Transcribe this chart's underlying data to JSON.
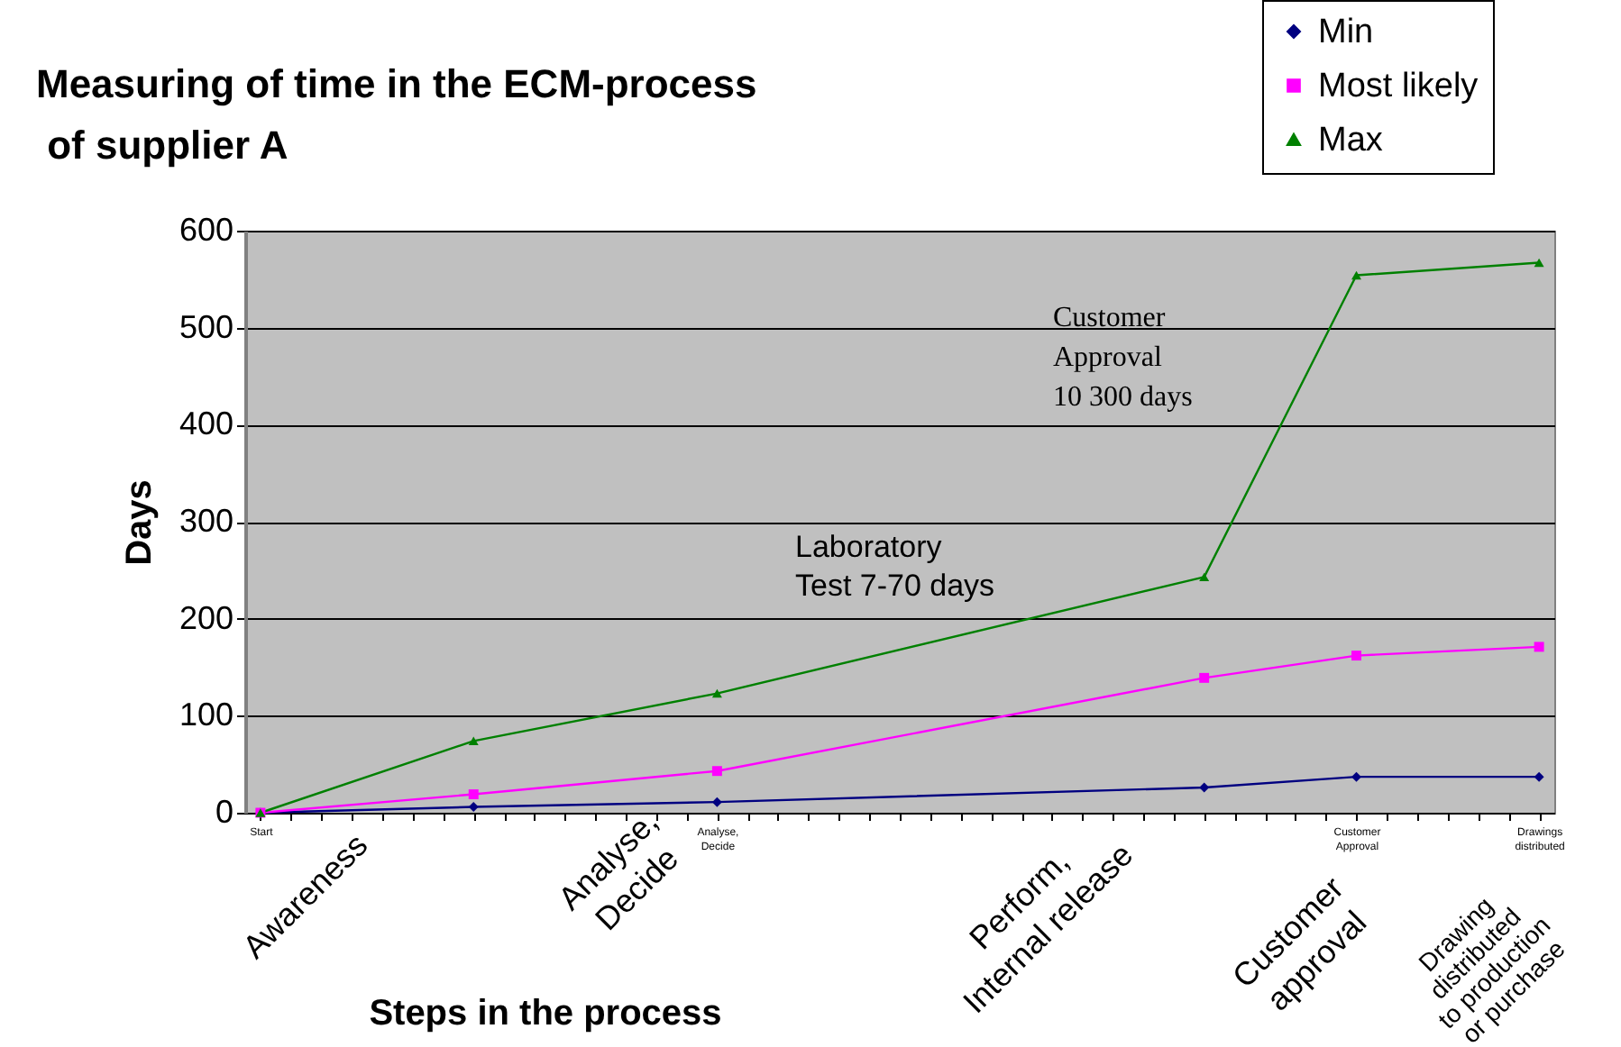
{
  "chart_data": {
    "type": "line",
    "title": [
      "Measuring of time in the ECM-process",
      " of supplier A"
    ],
    "xlabel": "Steps in the process",
    "ylabel": "Days",
    "categories": [
      "Start",
      null,
      null,
      null,
      null,
      null,
      null,
      null,
      null,
      null,
      null,
      null,
      null,
      null,
      null,
      "Analyse, Decide",
      null,
      null,
      null,
      null,
      null,
      null,
      null,
      null,
      null,
      null,
      null,
      null,
      null,
      null,
      null,
      null,
      null,
      null,
      null,
      null,
      "Customer Approval",
      null,
      null,
      null,
      null,
      null,
      "Drawings distributed"
    ],
    "series": [
      {
        "name": "Min",
        "color": "#000080",
        "marker": "diamond",
        "values": [
          0,
          null,
          null,
          null,
          null,
          null,
          null,
          6,
          null,
          null,
          null,
          null,
          null,
          null,
          null,
          11,
          null,
          null,
          null,
          null,
          null,
          null,
          null,
          null,
          null,
          null,
          null,
          null,
          null,
          null,
          null,
          26,
          null,
          null,
          null,
          null,
          37,
          null,
          null,
          null,
          null,
          null,
          37
        ]
      },
      {
        "name": "Most likely",
        "color": "#ff00ff",
        "marker": "square",
        "values": [
          0,
          null,
          null,
          null,
          null,
          null,
          null,
          19,
          null,
          null,
          null,
          null,
          null,
          null,
          null,
          43,
          null,
          null,
          null,
          null,
          null,
          null,
          null,
          null,
          null,
          null,
          null,
          null,
          null,
          null,
          null,
          139,
          null,
          null,
          null,
          null,
          162,
          null,
          null,
          null,
          null,
          null,
          171
        ]
      },
      {
        "name": "Max",
        "color": "#008000",
        "marker": "triangle",
        "values": [
          0,
          null,
          null,
          null,
          null,
          null,
          null,
          74,
          null,
          null,
          null,
          null,
          null,
          null,
          null,
          123,
          null,
          null,
          null,
          null,
          null,
          null,
          null,
          null,
          null,
          null,
          null,
          null,
          null,
          null,
          null,
          243,
          null,
          null,
          null,
          null,
          554,
          null,
          null,
          null,
          null,
          null,
          567
        ]
      }
    ],
    "ylim": [
      0,
      600
    ],
    "yticks": [
      0,
      100,
      200,
      300,
      400,
      500,
      600
    ],
    "grid": "y",
    "legend": "top right",
    "annotations": [
      "Laboratory\nTest 7-70 days",
      "Customer\nApproval\n10 300 days",
      "Awareness",
      "Analyse,\nDecide",
      "Perform,\nInternal release",
      "Customer\napproval",
      "Drawing\ndistributed\nto production\nor purchase"
    ]
  }
}
